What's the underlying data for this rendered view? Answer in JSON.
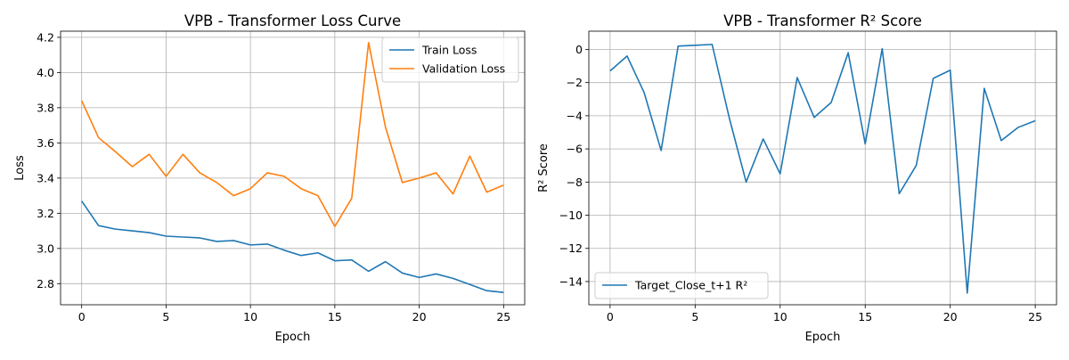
{
  "chart_data": [
    {
      "type": "line",
      "title": "VPB - Transformer Loss Curve",
      "xlabel": "Epoch",
      "ylabel": "Loss",
      "xlim": [
        -1.25,
        26.25
      ],
      "ylim": [
        2.68,
        4.235
      ],
      "xticks": [
        0,
        5,
        10,
        15,
        20,
        25
      ],
      "yticks": [
        2.8,
        3.0,
        3.2,
        3.4,
        3.6,
        3.8,
        4.0,
        4.2
      ],
      "ytick_decimals": 1,
      "grid": true,
      "legend_position": "top-right",
      "x": [
        0,
        1,
        2,
        3,
        4,
        5,
        6,
        7,
        8,
        9,
        10,
        11,
        12,
        13,
        14,
        15,
        16,
        17,
        18,
        19,
        20,
        21,
        22,
        23,
        24,
        25
      ],
      "series": [
        {
          "name": "Train Loss",
          "color": "#1f77b4",
          "values": [
            3.27,
            3.13,
            3.11,
            3.1,
            3.09,
            3.07,
            3.065,
            3.06,
            3.04,
            3.045,
            3.02,
            3.025,
            2.99,
            2.96,
            2.975,
            2.93,
            2.935,
            2.87,
            2.925,
            2.86,
            2.835,
            2.855,
            2.83,
            2.795,
            2.76,
            2.75
          ]
        },
        {
          "name": "Validation Loss",
          "color": "#ff7f0e",
          "values": [
            3.84,
            3.63,
            3.55,
            3.465,
            3.535,
            3.41,
            3.535,
            3.43,
            3.375,
            3.3,
            3.34,
            3.43,
            3.41,
            3.34,
            3.3,
            3.125,
            3.285,
            4.17,
            3.69,
            3.375,
            3.4,
            3.43,
            3.31,
            3.525,
            3.32,
            3.36
          ]
        }
      ]
    },
    {
      "type": "line",
      "title": "VPB - Transformer R² Score",
      "xlabel": "Epoch",
      "ylabel": "R² Score",
      "xlim": [
        -1.25,
        26.25
      ],
      "ylim": [
        -15.4,
        1.1
      ],
      "xticks": [
        0,
        5,
        10,
        15,
        20,
        25
      ],
      "yticks": [
        -14,
        -12,
        -10,
        -8,
        -6,
        -4,
        -2,
        0
      ],
      "ytick_decimals": 0,
      "grid": true,
      "legend_position": "bottom-left",
      "x": [
        0,
        1,
        2,
        3,
        4,
        5,
        6,
        7,
        8,
        9,
        10,
        11,
        12,
        13,
        14,
        15,
        16,
        17,
        18,
        19,
        20,
        21,
        22,
        23,
        24,
        25
      ],
      "series": [
        {
          "name": "Target_Close_t+1 R²",
          "color": "#1f77b4",
          "values": [
            -1.3,
            -0.4,
            -2.6,
            -6.1,
            0.2,
            0.25,
            0.3,
            -4.1,
            -8.0,
            -5.4,
            -7.5,
            -1.7,
            -4.1,
            -3.2,
            -0.2,
            -5.7,
            0.05,
            -8.7,
            -7.0,
            -1.75,
            -1.25,
            -14.7,
            -2.35,
            -5.5,
            -4.7,
            -4.3
          ]
        }
      ]
    }
  ]
}
